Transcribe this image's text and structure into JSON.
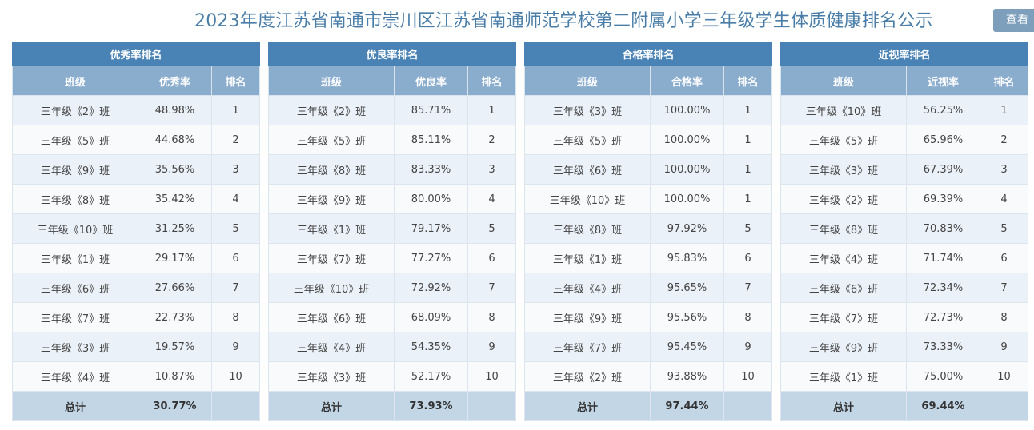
{
  "header": {
    "title": "2023年度江苏省南通市崇川区江苏省南通师范学校第二附属小学三年级学生体质健康排名公示",
    "view_button": "查看"
  },
  "colors": {
    "title": "#4a7ea8",
    "caption_bg": "#4982b5",
    "header_bg": "#8aaccd",
    "row_odd": "#eaf1f8",
    "row_even": "#f8fafc",
    "footer_bg": "#c3d6e6",
    "button_bg": "#7e9fbc"
  },
  "panels": [
    {
      "caption": "优秀率排名",
      "headers": [
        "班级",
        "优秀率",
        "排名"
      ],
      "rows": [
        [
          "三年级《2》班",
          "48.98%",
          "1"
        ],
        [
          "三年级《5》班",
          "44.68%",
          "2"
        ],
        [
          "三年级《9》班",
          "35.56%",
          "3"
        ],
        [
          "三年级《8》班",
          "35.42%",
          "4"
        ],
        [
          "三年级《10》班",
          "31.25%",
          "5"
        ],
        [
          "三年级《1》班",
          "29.17%",
          "6"
        ],
        [
          "三年级《6》班",
          "27.66%",
          "7"
        ],
        [
          "三年级《7》班",
          "22.73%",
          "8"
        ],
        [
          "三年级《3》班",
          "19.57%",
          "9"
        ],
        [
          "三年级《4》班",
          "10.87%",
          "10"
        ]
      ],
      "total_label": "总计",
      "total_value": "30.77%"
    },
    {
      "caption": "优良率排名",
      "headers": [
        "班级",
        "优良率",
        "排名"
      ],
      "rows": [
        [
          "三年级《2》班",
          "85.71%",
          "1"
        ],
        [
          "三年级《5》班",
          "85.11%",
          "2"
        ],
        [
          "三年级《8》班",
          "83.33%",
          "3"
        ],
        [
          "三年级《9》班",
          "80.00%",
          "4"
        ],
        [
          "三年级《1》班",
          "79.17%",
          "5"
        ],
        [
          "三年级《7》班",
          "77.27%",
          "6"
        ],
        [
          "三年级《10》班",
          "72.92%",
          "7"
        ],
        [
          "三年级《6》班",
          "68.09%",
          "8"
        ],
        [
          "三年级《4》班",
          "54.35%",
          "9"
        ],
        [
          "三年级《3》班",
          "52.17%",
          "10"
        ]
      ],
      "total_label": "总计",
      "total_value": "73.93%"
    },
    {
      "caption": "合格率排名",
      "headers": [
        "班级",
        "合格率",
        "排名"
      ],
      "rows": [
        [
          "三年级《3》班",
          "100.00%",
          "1"
        ],
        [
          "三年级《5》班",
          "100.00%",
          "1"
        ],
        [
          "三年级《6》班",
          "100.00%",
          "1"
        ],
        [
          "三年级《10》班",
          "100.00%",
          "1"
        ],
        [
          "三年级《8》班",
          "97.92%",
          "5"
        ],
        [
          "三年级《1》班",
          "95.83%",
          "6"
        ],
        [
          "三年级《4》班",
          "95.65%",
          "7"
        ],
        [
          "三年级《9》班",
          "95.56%",
          "8"
        ],
        [
          "三年级《7》班",
          "95.45%",
          "9"
        ],
        [
          "三年级《2》班",
          "93.88%",
          "10"
        ]
      ],
      "total_label": "总计",
      "total_value": "97.44%"
    },
    {
      "caption": "近视率排名",
      "headers": [
        "班级",
        "近视率",
        "排名"
      ],
      "rows": [
        [
          "三年级《10》班",
          "56.25%",
          "1"
        ],
        [
          "三年级《5》班",
          "65.96%",
          "2"
        ],
        [
          "三年级《3》班",
          "67.39%",
          "3"
        ],
        [
          "三年级《2》班",
          "69.39%",
          "4"
        ],
        [
          "三年级《8》班",
          "70.83%",
          "5"
        ],
        [
          "三年级《4》班",
          "71.74%",
          "6"
        ],
        [
          "三年级《6》班",
          "72.34%",
          "7"
        ],
        [
          "三年级《7》班",
          "72.73%",
          "8"
        ],
        [
          "三年级《9》班",
          "73.33%",
          "9"
        ],
        [
          "三年级《1》班",
          "75.00%",
          "10"
        ]
      ],
      "total_label": "总计",
      "total_value": "69.44%"
    }
  ]
}
